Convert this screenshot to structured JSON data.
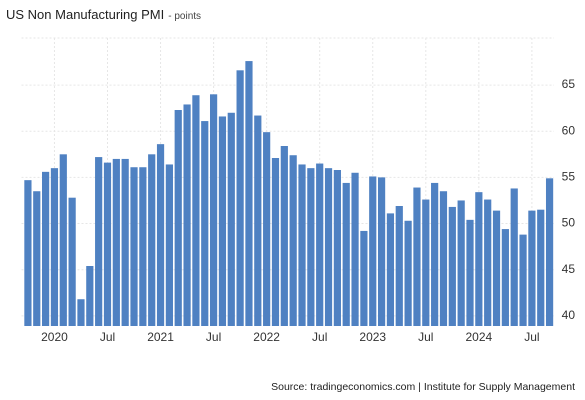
{
  "chart_data": {
    "type": "bar",
    "title": "US Non Manufacturing PMI",
    "subtitle": "- points",
    "source": "Source: tradingeconomics.com | Institute for Supply Management",
    "categories": [
      null,
      null,
      null,
      "2020",
      null,
      null,
      null,
      null,
      null,
      "Jul",
      null,
      null,
      null,
      null,
      null,
      "2021",
      null,
      null,
      null,
      null,
      null,
      "Jul",
      null,
      null,
      null,
      null,
      null,
      "2022",
      null,
      null,
      null,
      null,
      null,
      "Jul",
      null,
      null,
      null,
      null,
      null,
      "2023",
      null,
      null,
      null,
      null,
      null,
      "Jul",
      null,
      null,
      null,
      null,
      null,
      "2024",
      null,
      null,
      null,
      null,
      null,
      "Jul",
      null,
      null
    ],
    "values": [
      54.7,
      53.5,
      55.6,
      56.0,
      57.5,
      52.8,
      41.8,
      45.4,
      57.2,
      56.6,
      57.0,
      57.0,
      56.1,
      56.1,
      57.5,
      58.6,
      56.4,
      62.3,
      62.9,
      63.9,
      61.1,
      64.0,
      61.6,
      62.0,
      66.6,
      67.6,
      61.7,
      59.9,
      57.1,
      58.4,
      57.4,
      56.4,
      56.0,
      56.5,
      56.0,
      55.8,
      54.4,
      55.5,
      49.2,
      55.1,
      55.0,
      51.1,
      51.9,
      50.3,
      53.9,
      52.6,
      54.4,
      53.5,
      51.8,
      52.5,
      50.4,
      53.4,
      52.6,
      51.4,
      49.4,
      53.8,
      48.8,
      51.4,
      51.5,
      54.9
    ],
    "color": "#4f81c2",
    "ylim": [
      38.9,
      70.1
    ],
    "yticks": [
      40,
      45,
      50,
      55,
      60,
      65
    ],
    "grid": true
  }
}
